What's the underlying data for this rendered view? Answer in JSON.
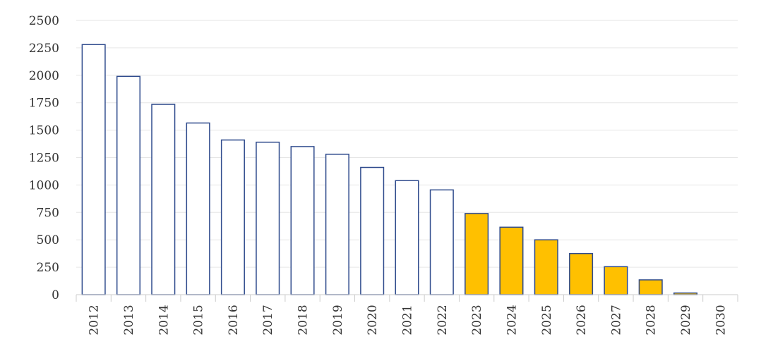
{
  "chart_data": {
    "type": "bar",
    "title": "",
    "xlabel": "",
    "ylabel": "",
    "categories": [
      "2012",
      "2013",
      "2014",
      "2015",
      "2016",
      "2017",
      "2018",
      "2019",
      "2020",
      "2021",
      "2022",
      "2023",
      "2024",
      "2025",
      "2026",
      "2027",
      "2028",
      "2029",
      "2030"
    ],
    "values": [
      2280,
      1990,
      1735,
      1565,
      1410,
      1390,
      1350,
      1280,
      1160,
      1040,
      955,
      740,
      615,
      500,
      375,
      255,
      135,
      15,
      0
    ],
    "ylim": [
      0,
      2500
    ],
    "yticks": [
      0,
      250,
      500,
      750,
      1000,
      1250,
      1500,
      1750,
      2000,
      2250,
      2500
    ],
    "grid": true,
    "legend": "none",
    "colors": {
      "historical_fill": "#ffffff",
      "projected_fill": "#ffc000",
      "bar_stroke": "#2e4a8c",
      "grid": "#e6e6e6",
      "axis": "#cccccc",
      "text": "#333333"
    },
    "projected_from_index": 11
  }
}
